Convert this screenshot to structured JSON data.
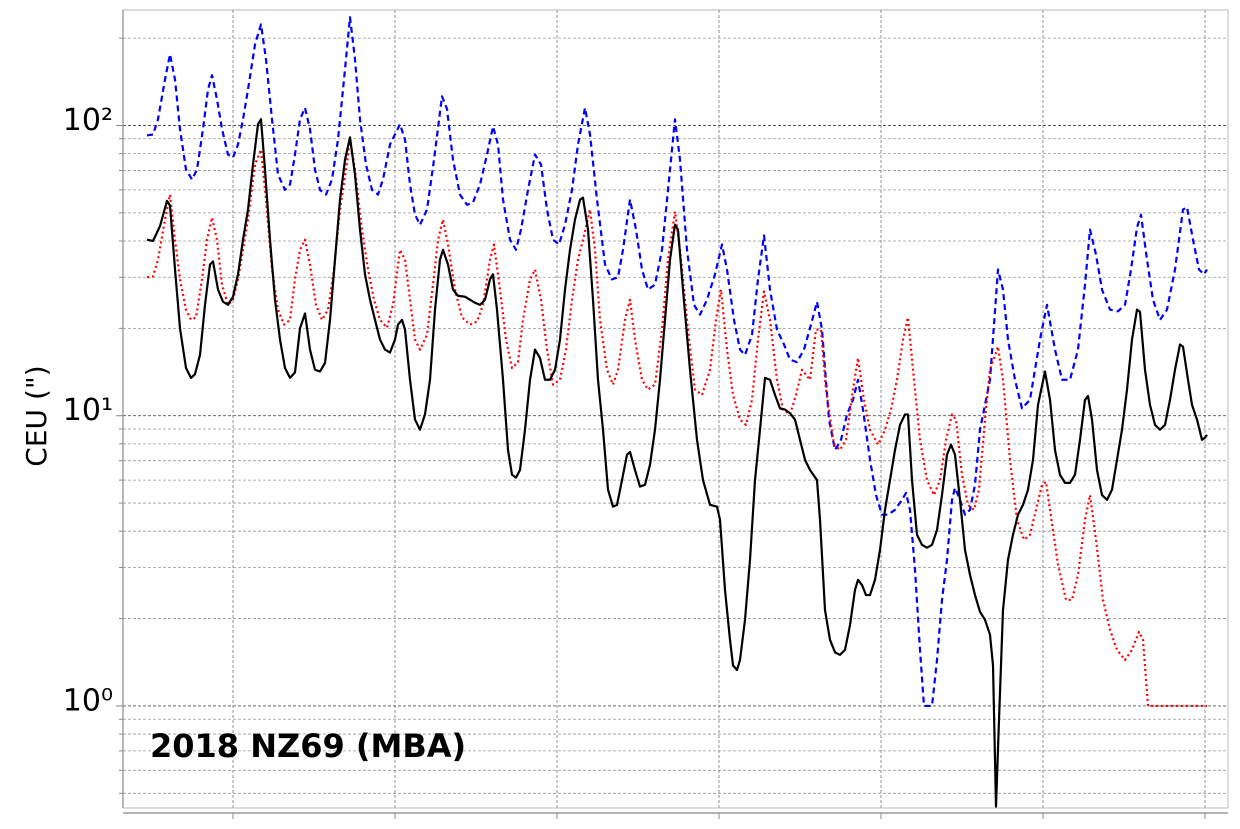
{
  "chart_data": {
    "type": "line",
    "ylabel": "CEU (\")",
    "annotation": "2018 NZ69 (MBA)",
    "yscale": "log",
    "grid": true,
    "xlim": [
      0,
      1105
    ],
    "xticks": [
      110,
      272,
      434,
      596,
      758,
      920,
      1082
    ],
    "ylim": [
      0.445,
      250
    ],
    "yticks": [
      {
        "value": 1,
        "label": "10⁰"
      },
      {
        "value": 10,
        "label": "10¹"
      },
      {
        "value": 100,
        "label": "10²"
      }
    ],
    "yminorticks": [
      0.5,
      0.6,
      0.7,
      0.8,
      0.9,
      2,
      3,
      4,
      5,
      6,
      7,
      8,
      9,
      20,
      30,
      40,
      50,
      60,
      70,
      80,
      90,
      200
    ],
    "series": [
      {
        "color": "#0000ff",
        "style": "dashed",
        "x": [
          24,
          30,
          35,
          42,
          47,
          52,
          57,
          63,
          69,
          74,
          80,
          85,
          89,
          94,
          99,
          105,
          110,
          115,
          120,
          125,
          132,
          138,
          143,
          149,
          155,
          162,
          167,
          172,
          177,
          182,
          187,
          192,
          197,
          203,
          209,
          215,
          221,
          227,
          232,
          237,
          243,
          249,
          255,
          260,
          267,
          277,
          282,
          287,
          292,
          297,
          304,
          311,
          319,
          324,
          330,
          337,
          344,
          350,
          357,
          364,
          370,
          375,
          380,
          387,
          393,
          398,
          405,
          412,
          418,
          424,
          430,
          436,
          442,
          449,
          455,
          462,
          467,
          474,
          482,
          489,
          495,
          500,
          507,
          513,
          519,
          525,
          532,
          539,
          545,
          552,
          557,
          564,
          571,
          577,
          584,
          592,
          599,
          604,
          611,
          617,
          622,
          629,
          635,
          641,
          647,
          654,
          661,
          667,
          674,
          681,
          688,
          694,
          699,
          706,
          712,
          718,
          724,
          730,
          735,
          740,
          747,
          753,
          759,
          765,
          772,
          779,
          783,
          787,
          792,
          797,
          801,
          809,
          814,
          819,
          824,
          829,
          832,
          837,
          842,
          847,
          852,
          857,
          867,
          875,
          880,
          885,
          892,
          899,
          907,
          917,
          924,
          932,
          939,
          947,
          955,
          962,
          967,
          973,
          979,
          987,
          995,
          1002,
          1008,
          1014,
          1018,
          1024,
          1030,
          1037,
          1044,
          1052,
          1060,
          1064,
          1070,
          1076,
          1081,
          1084
        ],
        "values": [
          92.4,
          93.1,
          105,
          144,
          176,
          144,
          97.2,
          70.5,
          65.2,
          70.5,
          97.2,
          133,
          149,
          123,
          97.2,
          79.4,
          77.6,
          86,
          105,
          133,
          190,
          223,
          169,
          105,
          67.8,
          60,
          62.6,
          79.4,
          105,
          115,
          97.2,
          70.5,
          60,
          57.8,
          65.2,
          89.5,
          144,
          236,
          169,
          105,
          73.4,
          60,
          57.8,
          65.2,
          86,
          101,
          89.5,
          62.6,
          49.3,
          45.5,
          51.3,
          76.2,
          126,
          114,
          76.2,
          57.8,
          53.3,
          54.3,
          62.6,
          79.4,
          99.2,
          86,
          55.6,
          40.4,
          37.3,
          43.8,
          60,
          79.4,
          73.4,
          51.3,
          40.4,
          38.9,
          45.5,
          60,
          86,
          115,
          93.1,
          55.6,
          33.2,
          29.5,
          30,
          37.3,
          55.6,
          43.8,
          31.9,
          27.2,
          28.3,
          37.3,
          60,
          105,
          76.2,
          37.3,
          24.1,
          22.3,
          25.1,
          30.7,
          38.9,
          31.9,
          21.4,
          16.9,
          16.2,
          19,
          29.5,
          41.8,
          27.2,
          19.8,
          17.6,
          15.6,
          15.3,
          16.9,
          20.6,
          24.7,
          19.8,
          9.7,
          7.62,
          8.26,
          10.1,
          11.35,
          13.3,
          10.5,
          7.05,
          5.33,
          4.56,
          4.56,
          4.74,
          5.13,
          5.42,
          4.74,
          2.95,
          1.56,
          1.0,
          1.0,
          1.44,
          2.32,
          3.19,
          5.13,
          5.64,
          5.13,
          4.56,
          4.74,
          5.78,
          8.95,
          13.3,
          31.9,
          27.2,
          18.3,
          13.3,
          10.6,
          11.35,
          18.3,
          24.1,
          16.9,
          13.3,
          13.3,
          16.9,
          28.3,
          43.8,
          35.9,
          27.2,
          23.2,
          22.9,
          24.1,
          31.9,
          44.5,
          49.3,
          34.5,
          25.1,
          21.4,
          23.2,
          31.9,
          51.3,
          52.3,
          40.4,
          31.9,
          30.7,
          31.9
        ]
      },
      {
        "color": "#ff0000",
        "style": "dotted",
        "x": [
          24,
          30,
          35,
          42,
          47,
          52,
          57,
          63,
          68,
          73,
          79,
          84,
          89,
          94,
          99,
          105,
          110,
          115,
          120,
          125,
          132,
          138,
          143,
          149,
          155,
          161,
          167,
          172,
          177,
          182,
          187,
          193,
          199,
          205,
          211,
          217,
          223,
          227,
          232,
          239,
          245,
          251,
          257,
          264,
          270,
          277,
          282,
          287,
          292,
          297,
          304,
          310,
          315,
          320,
          325,
          332,
          339,
          347,
          354,
          360,
          367,
          371,
          377,
          383,
          389,
          395,
          400,
          407,
          412,
          418,
          424,
          430,
          437,
          443,
          449,
          455,
          460,
          467,
          472,
          477,
          484,
          490,
          495,
          502,
          507,
          512,
          519,
          525,
          532,
          539,
          545,
          552,
          557,
          565,
          572,
          579,
          587,
          593,
          598,
          604,
          610,
          617,
          623,
          629,
          635,
          641,
          647,
          654,
          660,
          667,
          673,
          679,
          687,
          693,
          698,
          703,
          711,
          717,
          723,
          730,
          735,
          741,
          747,
          755,
          762,
          768,
          774,
          780,
          785,
          791,
          797,
          804,
          811,
          817,
          823,
          829,
          833,
          839,
          845,
          851,
          856,
          862,
          867,
          875,
          880,
          887,
          894,
          901,
          907,
          913,
          919,
          923,
          927,
          935,
          943,
          949,
          955,
          962,
          967,
          973,
          980,
          987,
          994,
          1002,
          1009,
          1016,
          1020,
          1025,
          1029,
          1047,
          1084
        ],
        "values": [
          30,
          30.2,
          34.5,
          47.4,
          57.8,
          40.4,
          29.5,
          23.2,
          21.4,
          21.8,
          29.5,
          40.4,
          48.2,
          40.4,
          28.3,
          24.1,
          25.1,
          29.5,
          37.3,
          47.4,
          73.4,
          82.6,
          55.5,
          31.9,
          23.2,
          20.6,
          21.4,
          29.5,
          37.3,
          40.4,
          33.2,
          24.1,
          21.4,
          23.2,
          31.9,
          51.3,
          70.5,
          89.5,
          70.5,
          43.8,
          31.9,
          25.1,
          21.4,
          20.1,
          24.1,
          37.3,
          34.5,
          25.1,
          18.3,
          16.9,
          19,
          28.3,
          40.4,
          47.4,
          38.9,
          27.2,
          21.8,
          20.6,
          21.1,
          24.1,
          34.5,
          38.9,
          27.2,
          18.3,
          14.6,
          15.3,
          21.4,
          29.5,
          31.9,
          25.1,
          16.9,
          12.8,
          13.3,
          16.9,
          25.1,
          34.5,
          40.4,
          51.3,
          37.3,
          21.4,
          14.4,
          12.8,
          14.4,
          21.4,
          25.1,
          18.3,
          13.3,
          12.3,
          12.8,
          19.8,
          34.5,
          50.5,
          37.3,
          19.8,
          12.3,
          11.8,
          14.4,
          21.4,
          27.2,
          16.9,
          11.8,
          9.7,
          9.3,
          11.35,
          18.3,
          26.8,
          21.4,
          13.3,
          10.5,
          10.1,
          11.8,
          14.4,
          13.3,
          19.8,
          19.8,
          12.3,
          7.95,
          7.62,
          8.26,
          12.3,
          15.8,
          11.35,
          8.95,
          7.95,
          8.95,
          10.5,
          13.3,
          18.3,
          21.8,
          13.3,
          8.26,
          6.0,
          5.33,
          6.0,
          8.26,
          10.1,
          9.7,
          6.26,
          4.93,
          4.74,
          5.56,
          9.7,
          14.4,
          17.3,
          13.3,
          7.05,
          4.38,
          3.74,
          3.89,
          4.74,
          5.78,
          5.92,
          4.74,
          3.07,
          2.32,
          2.32,
          2.83,
          4.38,
          5.33,
          3.74,
          2.32,
          1.83,
          1.56,
          1.44,
          1.56,
          1.8,
          1.69,
          1.0,
          1.0,
          1.0,
          1.0
        ]
      },
      {
        "color": "#000000",
        "style": "solid",
        "x": [
          24,
          30,
          37,
          44,
          47,
          52,
          57,
          63,
          68,
          72,
          77,
          82,
          87,
          90,
          95,
          100,
          105,
          110,
          115,
          120,
          125,
          130,
          135,
          138,
          142,
          147,
          152,
          157,
          162,
          167,
          172,
          177,
          182,
          187,
          192,
          197,
          202,
          207,
          212,
          217,
          222,
          227,
          232,
          237,
          242,
          247,
          252,
          257,
          262,
          267,
          272,
          275,
          279,
          282,
          287,
          292,
          297,
          302,
          307,
          312,
          317,
          320,
          325,
          330,
          335,
          342,
          347,
          352,
          357,
          362,
          367,
          370,
          374,
          380,
          385,
          389,
          393,
          397,
          402,
          407,
          412,
          417,
          422,
          427,
          432,
          437,
          442,
          447,
          452,
          457,
          460,
          465,
          470,
          475,
          480,
          485,
          490,
          494,
          499,
          504,
          507,
          512,
          517,
          522,
          527,
          532,
          537,
          542,
          547,
          552,
          555,
          560,
          567,
          574,
          580,
          587,
          594,
          597,
          602,
          607,
          610,
          614,
          617,
          622,
          627,
          632,
          637,
          642,
          647,
          652,
          657,
          662,
          667,
          672,
          677,
          682,
          687,
          694,
          697,
          702,
          707,
          712,
          717,
          722,
          727,
          732,
          735,
          739,
          743,
          747,
          752,
          757,
          762,
          767,
          772,
          777,
          782,
          785,
          789,
          794,
          799,
          804,
          809,
          814,
          819,
          824,
          828,
          832,
          837,
          842,
          847,
          852,
          857,
          862,
          867,
          870,
          873,
          876,
          880,
          885,
          890,
          895,
          900,
          905,
          910,
          915,
          922,
          927,
          932,
          937,
          942,
          947,
          952,
          957,
          962,
          965,
          969,
          974,
          979,
          984,
          989,
          994,
          999,
          1004,
          1009,
          1014,
          1017,
          1022,
          1027,
          1032,
          1037,
          1042,
          1047,
          1052,
          1057,
          1060,
          1065,
          1069,
          1074,
          1079,
          1082,
          1084
        ],
        "values": [
          40.4,
          40,
          45,
          55,
          53,
          32,
          20,
          14.6,
          13.5,
          13.9,
          16.2,
          24.1,
          33.2,
          34,
          27.2,
          24.7,
          24.1,
          25.7,
          30.7,
          40.4,
          51.3,
          73.4,
          101,
          105,
          70.5,
          40.4,
          25.1,
          18.3,
          14.6,
          13.5,
          14.1,
          20,
          22.5,
          16.9,
          14.4,
          14.2,
          15.2,
          21.4,
          34.5,
          55.5,
          76.2,
          91,
          67.8,
          43.8,
          30.7,
          25.1,
          21.4,
          18.3,
          16.9,
          16.5,
          18.3,
          20.6,
          21.4,
          19.8,
          13.3,
          9.7,
          8.95,
          10.1,
          13.3,
          23.2,
          34.5,
          37.3,
          33.2,
          27.2,
          25.9,
          25.7,
          25.1,
          24.5,
          24.1,
          25.1,
          29.5,
          30.7,
          23.2,
          13.3,
          7.62,
          6.26,
          6.12,
          6.5,
          8.95,
          13.3,
          16.9,
          15.8,
          13.3,
          13.3,
          14.4,
          18.3,
          27.2,
          37.3,
          47.4,
          55.5,
          56.4,
          43.8,
          25.1,
          13.3,
          8.95,
          5.56,
          4.86,
          4.93,
          6.0,
          7.34,
          7.5,
          6.5,
          5.7,
          5.78,
          6.78,
          8.95,
          13.3,
          21.4,
          34.5,
          45.5,
          43.8,
          27.2,
          14.4,
          8.26,
          6.0,
          4.93,
          4.86,
          4.38,
          2.51,
          1.69,
          1.38,
          1.33,
          1.44,
          1.98,
          3.19,
          6.0,
          8.95,
          13.5,
          13.3,
          11.8,
          10.6,
          10.5,
          10.2,
          9.7,
          8.26,
          7.05,
          6.5,
          6.0,
          4.38,
          2.14,
          1.69,
          1.53,
          1.5,
          1.56,
          1.9,
          2.51,
          2.72,
          2.61,
          2.41,
          2.41,
          2.72,
          3.45,
          4.74,
          6.0,
          7.62,
          9.3,
          10.1,
          10.1,
          6.0,
          3.89,
          3.59,
          3.51,
          3.59,
          4.04,
          5.33,
          7.34,
          7.95,
          7.34,
          5.13,
          3.45,
          2.83,
          2.41,
          2.11,
          1.98,
          1.76,
          1.38,
          0.45,
          0.895,
          2.14,
          3.19,
          3.89,
          4.56,
          4.93,
          5.56,
          7.05,
          10.9,
          14.2,
          11.35,
          7.62,
          6.26,
          5.87,
          5.87,
          6.26,
          8.26,
          11.35,
          11.7,
          9.7,
          6.5,
          5.33,
          5.13,
          5.56,
          7.05,
          8.95,
          12.3,
          18.3,
          23.2,
          22.8,
          14.4,
          10.9,
          9.3,
          8.95,
          9.3,
          11.35,
          14.4,
          17.6,
          17.3,
          13.3,
          10.9,
          9.7,
          8.26,
          8.4,
          8.6
        ]
      }
    ]
  }
}
